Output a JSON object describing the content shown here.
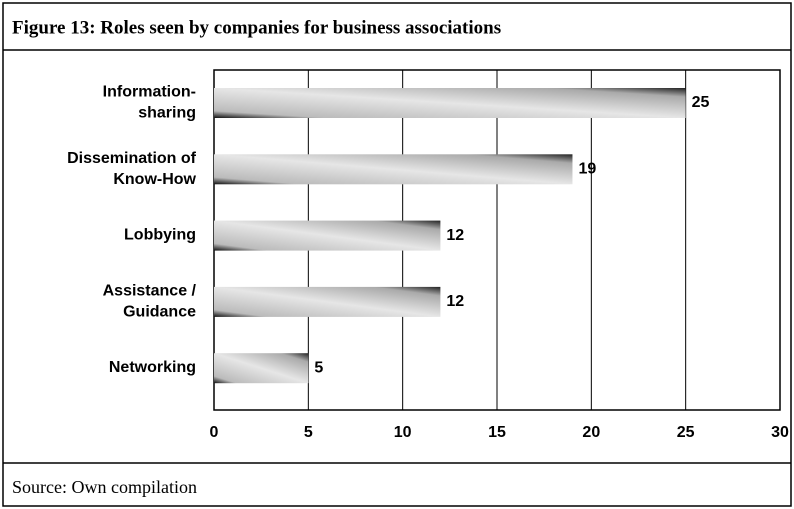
{
  "figure_title": "Figure 13:  Roles seen by companies for business associations",
  "source": "Source:  Own compilation",
  "chart_data": {
    "type": "bar",
    "orientation": "horizontal",
    "categories": [
      [
        "Information-",
        "sharing"
      ],
      [
        "Dissemination of",
        "Know-How"
      ],
      [
        "Lobbying"
      ],
      [
        "Assistance /",
        "Guidance"
      ],
      [
        "Networking"
      ]
    ],
    "values": [
      25,
      19,
      12,
      12,
      5
    ],
    "xlim": [
      0,
      30
    ],
    "xticks": [
      0,
      5,
      10,
      15,
      20,
      25,
      30
    ],
    "grid": true
  }
}
